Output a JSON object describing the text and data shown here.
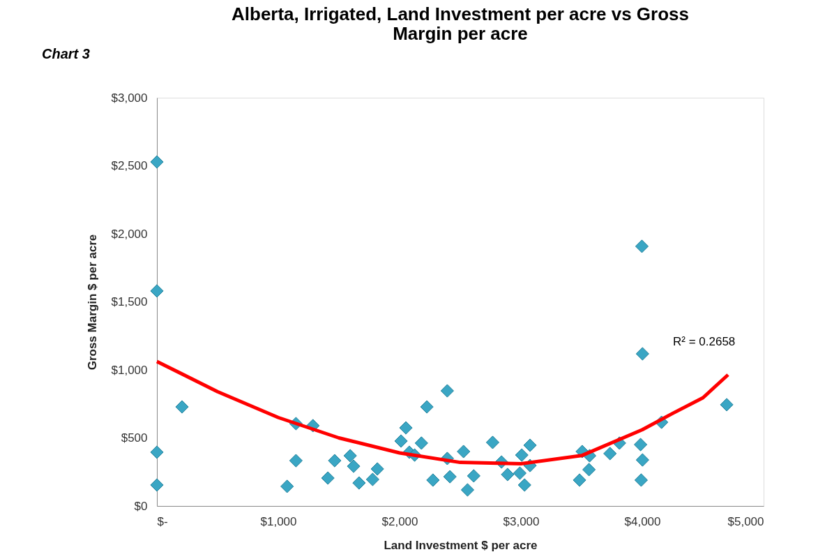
{
  "chart_data": {
    "type": "scatter",
    "title": "Alberta, Irrigated,  Land Investment per acre vs Gross Margin per acre",
    "xlabel": "Land Investment $ per acre",
    "ylabel": "Gross Margin $ per acre",
    "annotations": [
      "Chart 3",
      "R² = 0.2658"
    ],
    "marker": "diamond",
    "grid": false,
    "xlim": [
      0,
      5000
    ],
    "xticks": [
      {
        "value": 0,
        "label": "$-"
      },
      {
        "value": 1000,
        "label": "$1,000"
      },
      {
        "value": 2000,
        "label": "$2,000"
      },
      {
        "value": 3000,
        "label": "$3,000"
      },
      {
        "value": 4000,
        "label": "$4,000"
      },
      {
        "value": 5000,
        "label": "$5,000"
      }
    ],
    "ylim": [
      0,
      3000
    ],
    "yticks": [
      {
        "value": 0,
        "label": "$0"
      },
      {
        "value": 500,
        "label": "$500"
      },
      {
        "value": 1000,
        "label": "$1,000"
      },
      {
        "value": 1500,
        "label": "$1,500"
      },
      {
        "value": 2000,
        "label": "$2,000"
      },
      {
        "value": 2500,
        "label": "$2,500"
      },
      {
        "value": 3000,
        "label": "$3,000"
      }
    ],
    "series": [
      {
        "color": "#3aa6c4",
        "x": [
          0,
          0,
          0,
          0,
          207,
          1073,
          1146,
          1286,
          1146,
          1409,
          1465,
          1593,
          1621,
          1666,
          1778,
          1817,
          2012,
          2052,
          2080,
          2124,
          2180,
          2225,
          2275,
          2393,
          2393,
          2415,
          2527,
          2560,
          2611,
          2767,
          2840,
          3075,
          3007,
          3075,
          2890,
          2991,
          3030,
          3505,
          3566,
          3561,
          3483,
          3734,
          3812,
          3986,
          4002,
          3991,
          4159,
          4696,
          3997,
          4002
        ],
        "values": [
          2528,
          1580,
          395,
          154,
          728,
          144,
          605,
          590,
          333,
          205,
          333,
          369,
          292,
          169,
          195,
          272,
          477,
          574,
          395,
          374,
          462,
          728,
          190,
          846,
          349,
          215,
          400,
          118,
          221,
          467,
          323,
          446,
          374,
          297,
          231,
          241,
          154,
          400,
          369,
          267,
          190,
          385,
          462,
          451,
          338,
          190,
          615,
          744,
          1908,
          1118
        ]
      },
      {
        "type": "line",
        "color": "#ff0000",
        "marker": "none",
        "line_style": "solid",
        "x": [
          0,
          500,
          1000,
          1500,
          2000,
          2500,
          3000,
          3500,
          4000,
          4250,
          4500,
          4707
        ],
        "values": [
          1062,
          840,
          650,
          500,
          390,
          320,
          310,
          370,
          560,
          680,
          795,
          964
        ]
      }
    ]
  }
}
